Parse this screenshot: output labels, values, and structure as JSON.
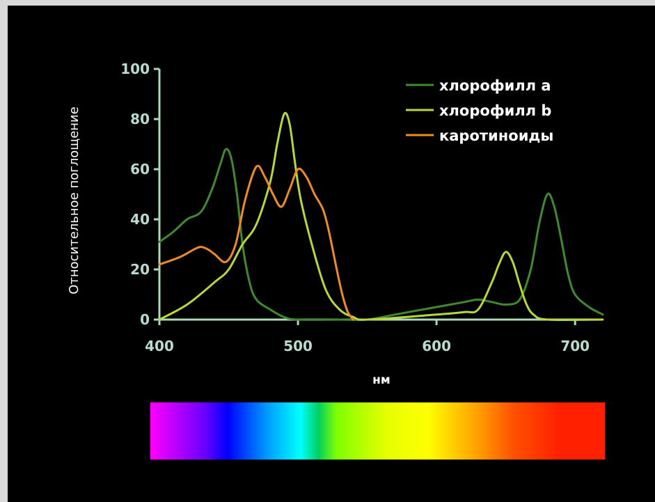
{
  "chart_data": {
    "type": "line",
    "title": "",
    "xlabel": "нм",
    "ylabel": "Относительное поглощение",
    "xlim": [
      400,
      720
    ],
    "ylim": [
      0,
      100
    ],
    "x_ticks": [
      400,
      500,
      600,
      700
    ],
    "y_ticks": [
      0,
      20,
      40,
      60,
      80,
      100
    ],
    "grid": false,
    "legend_position": "top-right",
    "series": [
      {
        "name": "хлорофилл a",
        "color": "#3f8a2e",
        "points": [
          [
            400,
            31
          ],
          [
            410,
            35
          ],
          [
            420,
            40
          ],
          [
            430,
            43
          ],
          [
            438,
            52
          ],
          [
            444,
            62
          ],
          [
            448,
            68
          ],
          [
            452,
            64
          ],
          [
            456,
            50
          ],
          [
            460,
            30
          ],
          [
            465,
            15
          ],
          [
            470,
            8
          ],
          [
            480,
            4
          ],
          [
            490,
            1
          ],
          [
            500,
            0
          ],
          [
            530,
            0
          ],
          [
            550,
            0
          ],
          [
            570,
            2
          ],
          [
            600,
            5
          ],
          [
            620,
            7
          ],
          [
            630,
            8
          ],
          [
            640,
            7
          ],
          [
            650,
            6
          ],
          [
            660,
            8
          ],
          [
            668,
            20
          ],
          [
            674,
            38
          ],
          [
            680,
            50
          ],
          [
            685,
            45
          ],
          [
            690,
            32
          ],
          [
            695,
            18
          ],
          [
            700,
            10
          ],
          [
            710,
            5
          ],
          [
            720,
            2
          ]
        ]
      },
      {
        "name": "хлорофилл b",
        "color": "#b6d83a",
        "points": [
          [
            400,
            0
          ],
          [
            420,
            6
          ],
          [
            440,
            15
          ],
          [
            450,
            20
          ],
          [
            460,
            30
          ],
          [
            470,
            38
          ],
          [
            480,
            55
          ],
          [
            485,
            70
          ],
          [
            490,
            82
          ],
          [
            494,
            78
          ],
          [
            498,
            62
          ],
          [
            502,
            48
          ],
          [
            510,
            30
          ],
          [
            520,
            12
          ],
          [
            530,
            4
          ],
          [
            540,
            1
          ],
          [
            550,
            0
          ],
          [
            600,
            2
          ],
          [
            620,
            3
          ],
          [
            630,
            4
          ],
          [
            640,
            15
          ],
          [
            645,
            22
          ],
          [
            650,
            27
          ],
          [
            655,
            23
          ],
          [
            660,
            14
          ],
          [
            665,
            6
          ],
          [
            670,
            2
          ],
          [
            680,
            0
          ],
          [
            720,
            0
          ]
        ]
      },
      {
        "name": "каротиноиды",
        "color": "#ef8a26",
        "points": [
          [
            400,
            22
          ],
          [
            415,
            25
          ],
          [
            425,
            28
          ],
          [
            430,
            29
          ],
          [
            435,
            28
          ],
          [
            440,
            26
          ],
          [
            448,
            23
          ],
          [
            455,
            30
          ],
          [
            462,
            48
          ],
          [
            470,
            61
          ],
          [
            476,
            57
          ],
          [
            482,
            50
          ],
          [
            488,
            45
          ],
          [
            494,
            52
          ],
          [
            500,
            60
          ],
          [
            506,
            57
          ],
          [
            512,
            50
          ],
          [
            518,
            44
          ],
          [
            522,
            36
          ],
          [
            528,
            20
          ],
          [
            532,
            10
          ],
          [
            536,
            3
          ],
          [
            540,
            0
          ]
        ]
      }
    ]
  },
  "legend": [
    {
      "label": "хлорофилл a",
      "color": "#3f8a2e"
    },
    {
      "label": "хлорофилл b",
      "color": "#b6d83a"
    },
    {
      "label": "каротиноиды",
      "color": "#ef8a26"
    }
  ],
  "axis_color": "#a9d9b7",
  "spectrum_colors": [
    "#ff00ff",
    "#6a00ff",
    "#0000ff",
    "#00a0ff",
    "#00ffff",
    "#00d060",
    "#7fff00",
    "#e6ff00",
    "#ffff00",
    "#ffa000",
    "#ff5000",
    "#ff2000"
  ]
}
